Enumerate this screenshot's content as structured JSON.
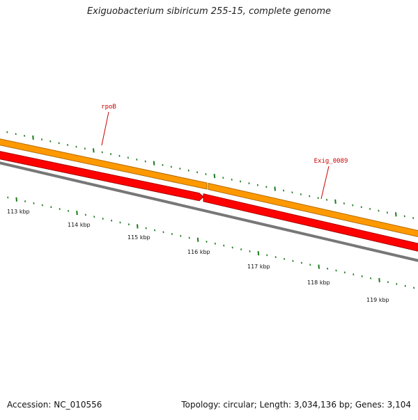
{
  "title": "Exiguobacterium sibiricum 255-15, complete genome",
  "footer": {
    "accession": "Accession: NC_010556",
    "summary": "Topology: circular; Length: 3,034,136 bp; Genes: 3,104"
  },
  "colors": {
    "forward_track": "#ff9900",
    "forward_track_edge": "#b36b00",
    "cds_track": "#ff0000",
    "cds_track_edge": "#aa0000",
    "backbone": "#777777",
    "ticks": "#1a7a1a",
    "gene_label": "#cc0000"
  },
  "genes": [
    {
      "name": "rpoB"
    },
    {
      "name": "Exig_0089"
    }
  ],
  "scale": {
    "unit": "kbp",
    "labels": [
      "113 kbp",
      "114 kbp",
      "115 kbp",
      "116 kbp",
      "117 kbp",
      "118 kbp",
      "119 kbp"
    ]
  }
}
